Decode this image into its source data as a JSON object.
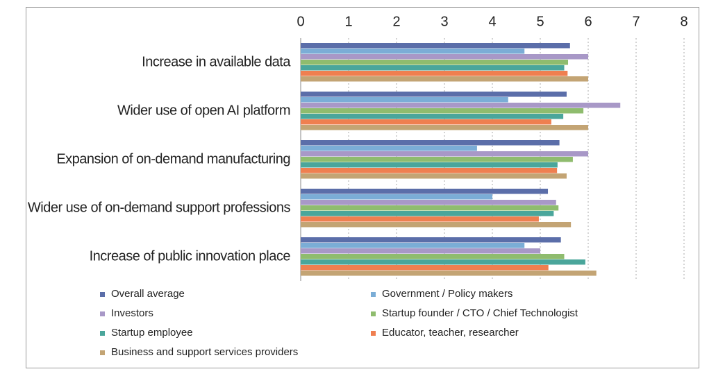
{
  "chart_data": {
    "type": "hbar",
    "categories": [
      "Increase in available data",
      "Wider use of open AI platform",
      "Expansion of on-demand manufacturing",
      "Wider use of on-demand support professions",
      "Increase of public innovation place"
    ],
    "series": [
      {
        "name": "Overall average",
        "color": "#5b6ea9",
        "values": [
          5.62,
          5.55,
          5.4,
          5.16,
          5.43
        ]
      },
      {
        "name": "Government / Policy makers",
        "color": "#7badd6",
        "values": [
          4.67,
          4.33,
          3.68,
          4.0,
          4.67
        ]
      },
      {
        "name": "Investors",
        "color": "#a898c7",
        "values": [
          6.0,
          6.67,
          6.0,
          5.33,
          5.0
        ]
      },
      {
        "name": "Startup founder / CTO / Chief Technologist",
        "color": "#8fbc6e",
        "values": [
          5.58,
          5.9,
          5.68,
          5.38,
          5.5
        ]
      },
      {
        "name": "Startup employee",
        "color": "#4aa69b",
        "values": [
          5.5,
          5.48,
          5.36,
          5.28,
          5.94
        ]
      },
      {
        "name": "Educator, teacher, researcher",
        "color": "#ef7f50",
        "values": [
          5.57,
          5.23,
          5.35,
          4.97,
          5.17
        ]
      },
      {
        "name": "Business and support services providers",
        "color": "#c3a474",
        "values": [
          6.0,
          6.0,
          5.55,
          5.64,
          6.17
        ]
      }
    ],
    "xlim": [
      0,
      8
    ],
    "xticks": [
      0,
      1,
      2,
      3,
      4,
      5,
      6,
      7,
      8
    ],
    "grid": true,
    "legend": "bottom"
  }
}
